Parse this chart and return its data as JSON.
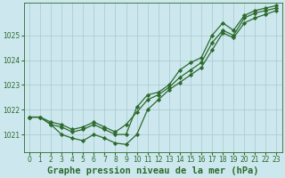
{
  "title": "Graphe pression niveau de la mer (hPa)",
  "bg_color": "#cce8ee",
  "line_color": "#2d6a2d",
  "grid_color": "#a8c8cc",
  "xlim": [
    -0.5,
    23.5
  ],
  "ylim": [
    1020.3,
    1026.3
  ],
  "yticks": [
    1021,
    1022,
    1023,
    1024,
    1025
  ],
  "xticks": [
    0,
    1,
    2,
    3,
    4,
    5,
    6,
    7,
    8,
    9,
    10,
    11,
    12,
    13,
    14,
    15,
    16,
    17,
    18,
    19,
    20,
    21,
    22,
    23
  ],
  "series": [
    {
      "x": [
        0,
        1,
        2,
        3,
        4,
        5,
        6,
        7,
        8,
        9,
        10,
        11,
        12,
        13,
        14,
        15,
        16,
        17,
        18,
        19,
        20,
        21,
        22,
        23
      ],
      "y": [
        1021.7,
        1021.7,
        1021.4,
        1021.3,
        1021.1,
        1021.2,
        1021.4,
        1021.2,
        1021.0,
        1021.0,
        1022.1,
        1022.6,
        1022.7,
        1023.0,
        1023.6,
        1023.9,
        1024.1,
        1025.0,
        1025.5,
        1025.2,
        1025.8,
        1026.0,
        1026.1,
        1026.2
      ]
    },
    {
      "x": [
        0,
        1,
        2,
        3,
        4,
        5,
        6,
        7,
        8,
        9,
        10,
        11,
        12,
        13,
        14,
        15,
        16,
        17,
        18,
        19,
        20,
        21,
        22,
        23
      ],
      "y": [
        1021.7,
        1021.7,
        1021.5,
        1021.4,
        1021.2,
        1021.3,
        1021.5,
        1021.3,
        1021.1,
        1021.4,
        1021.9,
        1022.4,
        1022.6,
        1022.9,
        1023.3,
        1023.6,
        1023.9,
        1024.7,
        1025.2,
        1025.0,
        1025.7,
        1025.9,
        1026.0,
        1026.1
      ]
    },
    {
      "x": [
        0,
        1,
        2,
        3,
        4,
        5,
        6,
        7,
        8,
        9,
        10,
        11,
        12,
        13,
        14,
        15,
        16,
        17,
        18,
        19,
        20,
        21,
        22,
        23
      ],
      "y": [
        1021.7,
        1021.7,
        1021.4,
        1021.0,
        1020.85,
        1020.75,
        1021.0,
        1020.85,
        1020.65,
        1020.6,
        1021.0,
        1022.0,
        1022.4,
        1022.8,
        1023.1,
        1023.4,
        1023.7,
        1024.4,
        1025.1,
        1024.9,
        1025.5,
        1025.7,
        1025.85,
        1026.0
      ]
    }
  ],
  "marker": "D",
  "markersize": 2.2,
  "linewidth": 0.9,
  "title_fontsize": 7.5,
  "tick_fontsize": 5.5
}
